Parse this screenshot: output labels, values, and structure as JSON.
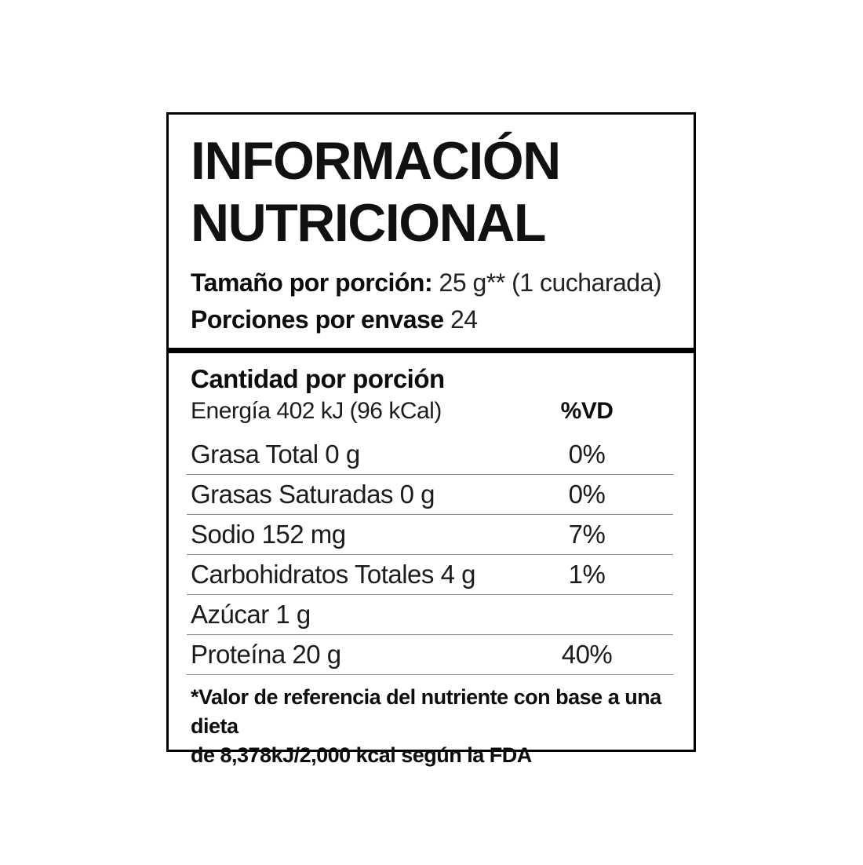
{
  "label": {
    "title_line1": "INFORMACIÓN",
    "title_line2": "NUTRICIONAL",
    "serving_size_label": "Tamaño por porción:",
    "serving_size_value": "25 g** (1 cucharada)",
    "servings_per_container_label": "Porciones por envase",
    "servings_per_container_value": "24",
    "amount_header": "Cantidad por porción",
    "energy_label": "Energía 402 kJ (96 kCal)",
    "dv_header": "%VD",
    "rows": [
      {
        "label": "Grasa Total 0 g",
        "dv": "0%"
      },
      {
        "label": "Grasas Saturadas 0 g",
        "dv": "0%"
      },
      {
        "label": "Sodio 152 mg",
        "dv": "7%"
      },
      {
        "label": "Carbohidratos Totales 4 g",
        "dv": "1%"
      },
      {
        "label": "Azúcar 1 g",
        "dv": ""
      },
      {
        "label": "Proteína 20 g",
        "dv": "40%"
      }
    ],
    "footnote_line1": "*Valor de referencia del nutriente con base a una dieta",
    "footnote_line2": "de 8,378kJ/2,000 kcal según la FDA"
  },
  "colors": {
    "background": "#ffffff",
    "border": "#000000",
    "text": "#1c1c1c",
    "separator": "#8c8c8c"
  }
}
